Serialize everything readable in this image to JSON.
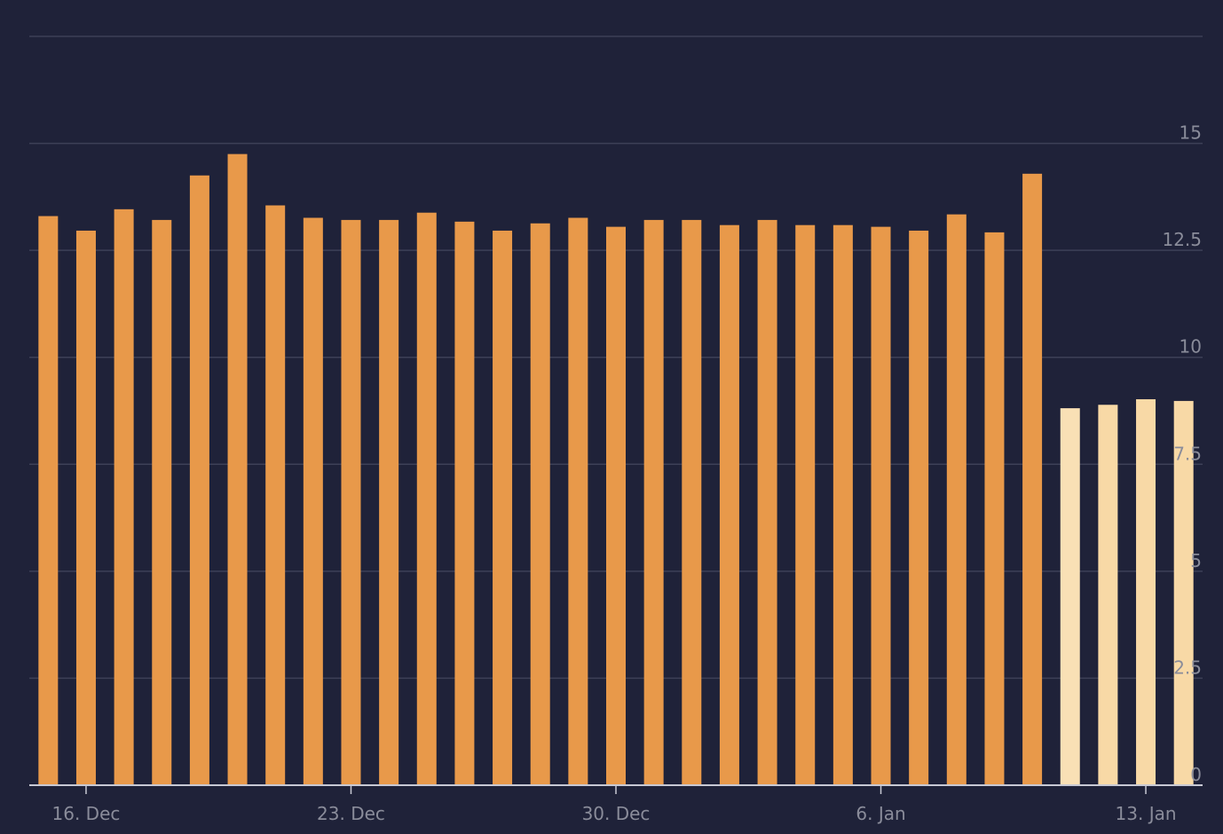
{
  "chart_data": {
    "type": "bar",
    "categories": [
      null,
      "16. Dec",
      null,
      null,
      null,
      null,
      null,
      null,
      "23. Dec",
      null,
      null,
      null,
      null,
      null,
      null,
      "30. Dec",
      null,
      null,
      null,
      null,
      null,
      null,
      "6. Jan",
      null,
      null,
      null,
      null,
      null,
      null,
      "13. Jan",
      null
    ],
    "values": [
      13.3,
      12.96,
      13.46,
      13.21,
      14.25,
      14.75,
      13.55,
      13.26,
      13.21,
      13.21,
      13.38,
      13.17,
      12.96,
      13.13,
      13.26,
      13.05,
      13.21,
      13.21,
      13.09,
      13.21,
      13.09,
      13.09,
      13.05,
      12.96,
      13.34,
      12.92,
      14.29,
      8.81,
      8.89,
      9.02,
      8.98
    ],
    "colors": [
      "#e8994a",
      "#e8994a",
      "#e8994a",
      "#e8994a",
      "#e8994a",
      "#e8994a",
      "#e8994a",
      "#e8994a",
      "#e8994a",
      "#e8994a",
      "#e8994a",
      "#e8994a",
      "#e8994a",
      "#e8994a",
      "#e8994a",
      "#e8994a",
      "#e8994a",
      "#e8994a",
      "#e8994a",
      "#e8994a",
      "#e8994a",
      "#e8994a",
      "#e8994a",
      "#e8994a",
      "#e8994a",
      "#e8994a",
      "#e8994a",
      "#f9e0b5",
      "#f8d9a6",
      "#f8d9a6",
      "#f8d9a6"
    ],
    "ylim": [
      0,
      17.5
    ],
    "yticks": [
      0,
      2.5,
      5,
      7.5,
      10,
      12.5,
      15
    ],
    "grid": true
  }
}
